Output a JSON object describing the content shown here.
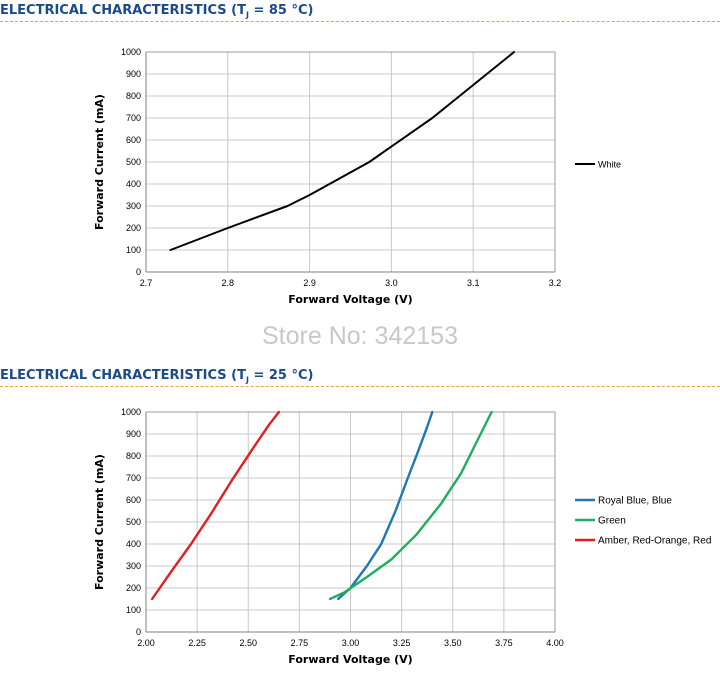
{
  "section1": {
    "title_prefix": "ELECTRICAL CHARACTERISTICS (T",
    "title_sub": "J",
    "title_suffix": " = 85 °C)"
  },
  "section2": {
    "title_prefix": "ELECTRICAL CHARACTERISTICS (T",
    "title_sub": "J",
    "title_suffix": " = 25 °C)"
  },
  "watermark": "Store No: 342153",
  "chart_data": [
    {
      "type": "line",
      "title": "",
      "xlabel": "Forward Voltage (V)",
      "ylabel": "Forward Current (mA)",
      "xlim": [
        2.7,
        3.2
      ],
      "ylim": [
        0,
        1000
      ],
      "x_ticks": [
        "2.7",
        "2.8",
        "2.9",
        "3.0",
        "3.1",
        "3.2"
      ],
      "y_ticks": [
        "0",
        "100",
        "200",
        "300",
        "400",
        "500",
        "600",
        "700",
        "800",
        "900",
        "1000"
      ],
      "grid": true,
      "legend_position": "right",
      "series": [
        {
          "name": "White",
          "color": "#000000",
          "x": [
            2.73,
            2.8,
            2.873,
            2.9,
            2.973,
            3.05,
            3.1,
            3.15
          ],
          "y": [
            100,
            200,
            300,
            350,
            500,
            700,
            850,
            1000
          ]
        }
      ]
    },
    {
      "type": "line",
      "title": "",
      "xlabel": "Forward Voltage (V)",
      "ylabel": "Forward Current (mA)",
      "xlim": [
        2.0,
        4.0
      ],
      "ylim": [
        0,
        1000
      ],
      "x_ticks": [
        "2.00",
        "2.25",
        "2.50",
        "2.75",
        "3.00",
        "3.25",
        "3.50",
        "3.75",
        "4.00"
      ],
      "y_ticks": [
        "0",
        "100",
        "200",
        "300",
        "400",
        "500",
        "600",
        "700",
        "800",
        "900",
        "1000"
      ],
      "grid": true,
      "legend_position": "right",
      "series": [
        {
          "name": "Royal Blue, Blue",
          "color": "#1f77b4",
          "x": [
            2.94,
            3.0,
            3.08,
            3.15,
            3.22,
            3.28,
            3.33,
            3.37,
            3.4
          ],
          "y": [
            150,
            200,
            300,
            400,
            550,
            700,
            820,
            920,
            1000
          ]
        },
        {
          "name": "Green",
          "color": "#1fae5f",
          "x": [
            2.9,
            2.97,
            3.08,
            3.2,
            3.32,
            3.44,
            3.54,
            3.62,
            3.69
          ],
          "y": [
            150,
            180,
            250,
            330,
            440,
            580,
            720,
            870,
            1000
          ]
        },
        {
          "name": "Amber, Red-Orange, Red",
          "color": "#e02020",
          "x": [
            2.03,
            2.12,
            2.22,
            2.32,
            2.42,
            2.52,
            2.6,
            2.65
          ],
          "y": [
            150,
            270,
            400,
            540,
            690,
            830,
            940,
            1000
          ]
        }
      ]
    }
  ]
}
